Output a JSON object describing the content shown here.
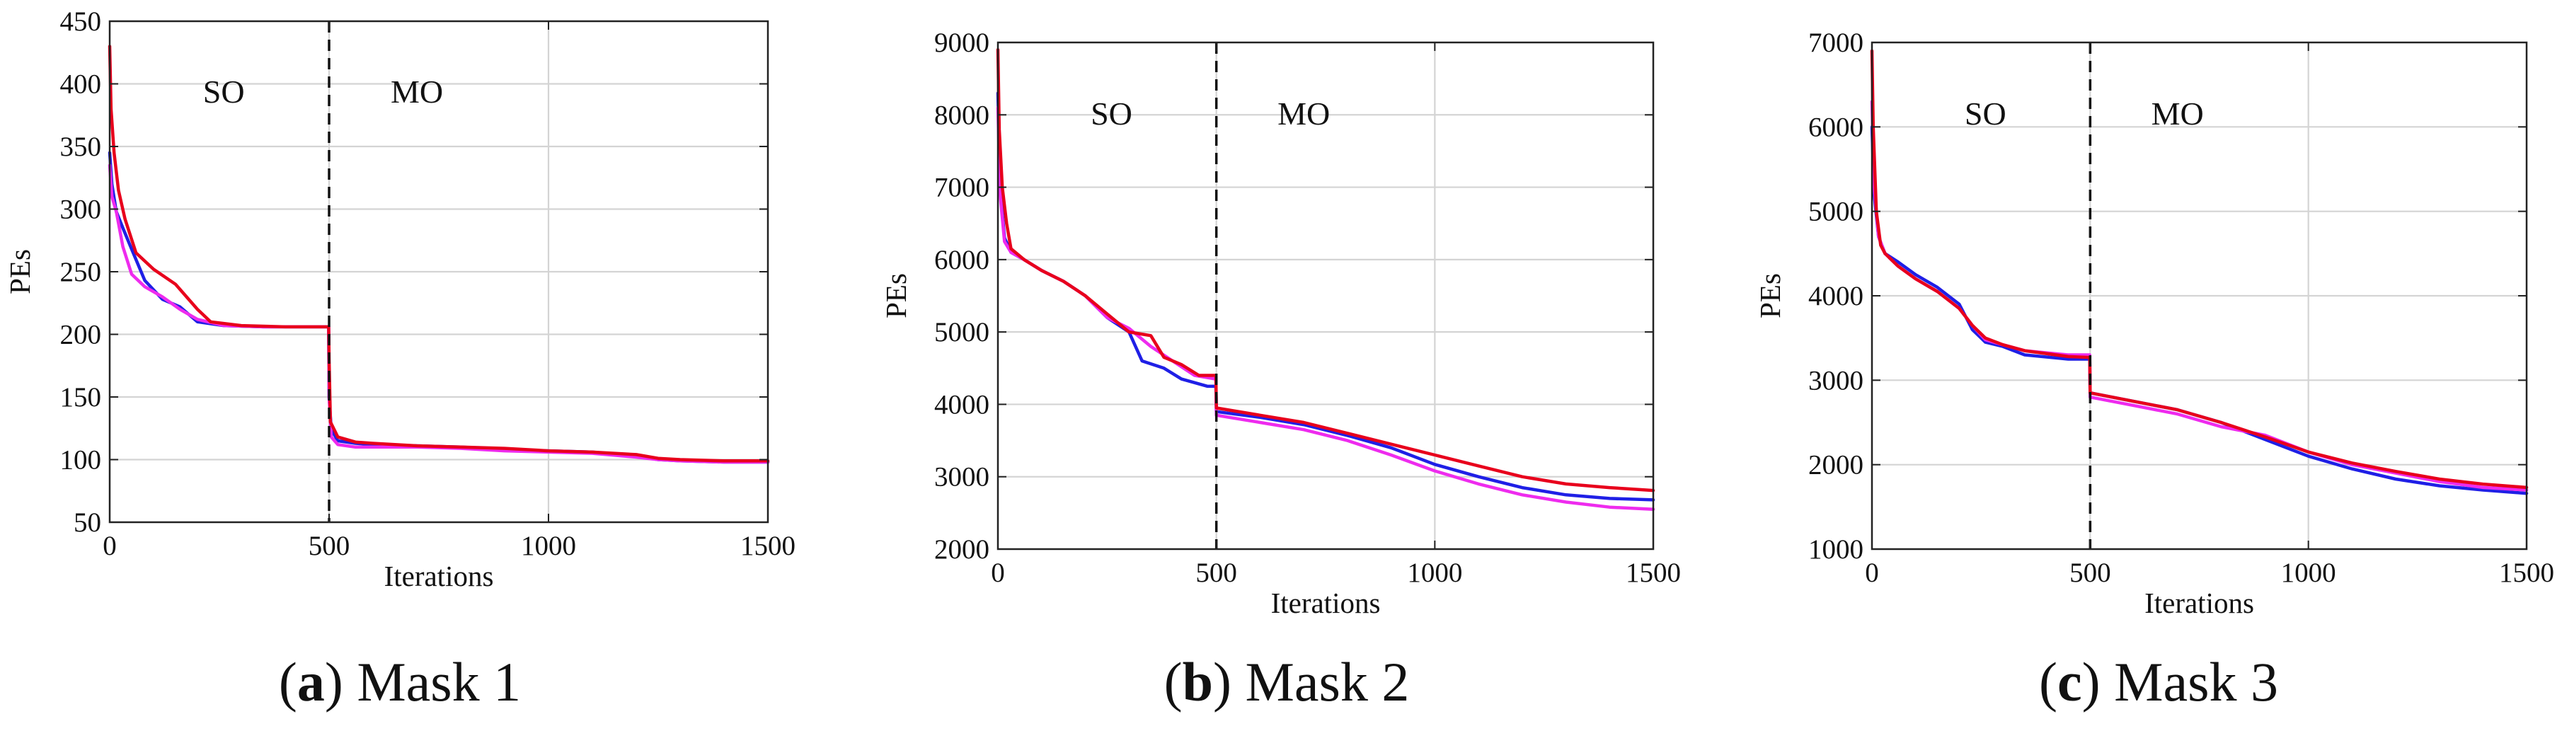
{
  "colors": {
    "red": "#e8001c",
    "blue": "#1f1fe6",
    "magenta": "#ee2bee",
    "divider": "#111111",
    "grid": "#d4d4d4"
  },
  "chart_data": [
    {
      "type": "line",
      "caption": {
        "letter": "a",
        "text": "Mask 1"
      },
      "xlabel": "Iterations",
      "ylabel": "PEs",
      "xlim": [
        0,
        1500
      ],
      "ylim": [
        50,
        450
      ],
      "xticks": [
        "0",
        "500",
        "1000",
        "1500"
      ],
      "yticks": [
        "50",
        "100",
        "150",
        "200",
        "250",
        "300",
        "350",
        "400",
        "450"
      ],
      "grid": true,
      "divider_x": 500,
      "regions": [
        "SO",
        "MO"
      ],
      "series": [
        {
          "color": "blue",
          "points": [
            [
              0,
              345
            ],
            [
              5,
              320
            ],
            [
              15,
              298
            ],
            [
              30,
              285
            ],
            [
              50,
              268
            ],
            [
              80,
              243
            ],
            [
              120,
              228
            ],
            [
              160,
              222
            ],
            [
              200,
              210
            ],
            [
              260,
              207
            ],
            [
              350,
              206
            ],
            [
              499,
              206
            ],
            [
              500,
              150
            ],
            [
              505,
              124
            ],
            [
              520,
              115
            ],
            [
              560,
              113
            ],
            [
              600,
              112
            ],
            [
              700,
              111
            ],
            [
              800,
              110
            ],
            [
              900,
              108
            ],
            [
              1000,
              107
            ],
            [
              1100,
              106
            ],
            [
              1200,
              103
            ],
            [
              1250,
              100
            ],
            [
              1300,
              99
            ],
            [
              1400,
              98
            ],
            [
              1500,
              98
            ]
          ]
        },
        {
          "color": "magenta",
          "points": [
            [
              0,
              335
            ],
            [
              5,
              310
            ],
            [
              15,
              298
            ],
            [
              30,
              270
            ],
            [
              50,
              248
            ],
            [
              80,
              238
            ],
            [
              120,
              230
            ],
            [
              160,
              220
            ],
            [
              200,
              212
            ],
            [
              260,
              207
            ],
            [
              350,
              206
            ],
            [
              499,
              206
            ],
            [
              500,
              150
            ],
            [
              505,
              118
            ],
            [
              520,
              112
            ],
            [
              560,
              110
            ],
            [
              600,
              110
            ],
            [
              700,
              110
            ],
            [
              800,
              109
            ],
            [
              900,
              107
            ],
            [
              1000,
              106
            ],
            [
              1100,
              105
            ],
            [
              1200,
              102
            ],
            [
              1250,
              100
            ],
            [
              1300,
              99
            ],
            [
              1400,
              98
            ],
            [
              1500,
              98
            ]
          ]
        },
        {
          "color": "red",
          "points": [
            [
              0,
              430
            ],
            [
              3,
              380
            ],
            [
              10,
              345
            ],
            [
              20,
              315
            ],
            [
              35,
              292
            ],
            [
              60,
              265
            ],
            [
              100,
              252
            ],
            [
              150,
              240
            ],
            [
              200,
              220
            ],
            [
              230,
              210
            ],
            [
              300,
              207
            ],
            [
              400,
              206
            ],
            [
              499,
              206
            ],
            [
              500,
              180
            ],
            [
              503,
              130
            ],
            [
              520,
              118
            ],
            [
              560,
              114
            ],
            [
              600,
              113
            ],
            [
              700,
              111
            ],
            [
              800,
              110
            ],
            [
              900,
              109
            ],
            [
              1000,
              107
            ],
            [
              1100,
              106
            ],
            [
              1200,
              104
            ],
            [
              1250,
              101
            ],
            [
              1300,
              100
            ],
            [
              1400,
              99
            ],
            [
              1500,
              99
            ]
          ]
        }
      ]
    },
    {
      "type": "line",
      "caption": {
        "letter": "b",
        "text": "Mask 2"
      },
      "xlabel": "Iterations",
      "ylabel": "PEs",
      "xlim": [
        0,
        1500
      ],
      "ylim": [
        2000,
        9000
      ],
      "xticks": [
        "0",
        "500",
        "1000",
        "1500"
      ],
      "yticks": [
        "2000",
        "3000",
        "4000",
        "5000",
        "6000",
        "7000",
        "8000",
        "9000"
      ],
      "grid": true,
      "divider_x": 500,
      "regions": [
        "SO",
        "MO"
      ],
      "series": [
        {
          "color": "blue",
          "points": [
            [
              0,
              8300
            ],
            [
              5,
              7000
            ],
            [
              15,
              6300
            ],
            [
              30,
              6100
            ],
            [
              60,
              6000
            ],
            [
              100,
              5850
            ],
            [
              150,
              5700
            ],
            [
              200,
              5500
            ],
            [
              250,
              5200
            ],
            [
              300,
              5000
            ],
            [
              330,
              4600
            ],
            [
              380,
              4500
            ],
            [
              420,
              4350
            ],
            [
              480,
              4250
            ],
            [
              499,
              4250
            ],
            [
              500,
              3900
            ],
            [
              600,
              3820
            ],
            [
              700,
              3720
            ],
            [
              800,
              3570
            ],
            [
              900,
              3400
            ],
            [
              1000,
              3170
            ],
            [
              1100,
              3000
            ],
            [
              1200,
              2850
            ],
            [
              1300,
              2750
            ],
            [
              1400,
              2700
            ],
            [
              1500,
              2680
            ]
          ]
        },
        {
          "color": "magenta",
          "points": [
            [
              0,
              8100
            ],
            [
              5,
              6900
            ],
            [
              15,
              6250
            ],
            [
              30,
              6100
            ],
            [
              60,
              6000
            ],
            [
              100,
              5850
            ],
            [
              150,
              5700
            ],
            [
              200,
              5500
            ],
            [
              250,
              5200
            ],
            [
              300,
              5050
            ],
            [
              350,
              4800
            ],
            [
              400,
              4600
            ],
            [
              450,
              4400
            ],
            [
              499,
              4350
            ],
            [
              500,
              3850
            ],
            [
              600,
              3750
            ],
            [
              700,
              3650
            ],
            [
              800,
              3500
            ],
            [
              900,
              3300
            ],
            [
              1000,
              3080
            ],
            [
              1100,
              2900
            ],
            [
              1200,
              2750
            ],
            [
              1300,
              2650
            ],
            [
              1400,
              2580
            ],
            [
              1500,
              2550
            ]
          ]
        },
        {
          "color": "red",
          "points": [
            [
              0,
              8900
            ],
            [
              3,
              7800
            ],
            [
              10,
              7000
            ],
            [
              20,
              6500
            ],
            [
              30,
              6150
            ],
            [
              60,
              6000
            ],
            [
              100,
              5850
            ],
            [
              150,
              5700
            ],
            [
              200,
              5500
            ],
            [
              250,
              5250
            ],
            [
              300,
              5000
            ],
            [
              350,
              4950
            ],
            [
              380,
              4650
            ],
            [
              420,
              4550
            ],
            [
              460,
              4400
            ],
            [
              499,
              4400
            ],
            [
              500,
              3950
            ],
            [
              600,
              3850
            ],
            [
              700,
              3750
            ],
            [
              800,
              3600
            ],
            [
              900,
              3450
            ],
            [
              1000,
              3300
            ],
            [
              1100,
              3150
            ],
            [
              1200,
              3000
            ],
            [
              1300,
              2900
            ],
            [
              1400,
              2850
            ],
            [
              1500,
              2810
            ]
          ]
        }
      ]
    },
    {
      "type": "line",
      "caption": {
        "letter": "c",
        "text": "Mask 3"
      },
      "xlabel": "Iterations",
      "ylabel": "PEs",
      "xlim": [
        0,
        1500
      ],
      "ylim": [
        1000,
        7000
      ],
      "xticks": [
        "0",
        "500",
        "1000",
        "1500"
      ],
      "yticks": [
        "1000",
        "2000",
        "3000",
        "4000",
        "5000",
        "6000",
        "7000"
      ],
      "grid": true,
      "divider_x": 500,
      "regions": [
        "SO",
        "MO"
      ],
      "series": [
        {
          "color": "blue",
          "points": [
            [
              0,
              6000
            ],
            [
              5,
              5200
            ],
            [
              15,
              4700
            ],
            [
              30,
              4500
            ],
            [
              60,
              4400
            ],
            [
              100,
              4250
            ],
            [
              150,
              4100
            ],
            [
              200,
              3900
            ],
            [
              230,
              3600
            ],
            [
              260,
              3450
            ],
            [
              300,
              3400
            ],
            [
              350,
              3300
            ],
            [
              450,
              3250
            ],
            [
              499,
              3250
            ],
            [
              500,
              2850
            ],
            [
              600,
              2750
            ],
            [
              700,
              2650
            ],
            [
              800,
              2500
            ],
            [
              900,
              2300
            ],
            [
              1000,
              2100
            ],
            [
              1100,
              1950
            ],
            [
              1200,
              1830
            ],
            [
              1300,
              1750
            ],
            [
              1400,
              1700
            ],
            [
              1500,
              1660
            ]
          ]
        },
        {
          "color": "magenta",
          "points": [
            [
              0,
              6300
            ],
            [
              5,
              5300
            ],
            [
              15,
              4700
            ],
            [
              30,
              4500
            ],
            [
              60,
              4350
            ],
            [
              100,
              4200
            ],
            [
              150,
              4050
            ],
            [
              200,
              3850
            ],
            [
              230,
              3650
            ],
            [
              260,
              3480
            ],
            [
              300,
              3420
            ],
            [
              350,
              3350
            ],
            [
              450,
              3300
            ],
            [
              499,
              3300
            ],
            [
              500,
              2800
            ],
            [
              600,
              2700
            ],
            [
              700,
              2600
            ],
            [
              800,
              2450
            ],
            [
              900,
              2350
            ],
            [
              1000,
              2150
            ],
            [
              1100,
              2000
            ],
            [
              1200,
              1900
            ],
            [
              1300,
              1800
            ],
            [
              1400,
              1730
            ],
            [
              1500,
              1700
            ]
          ]
        },
        {
          "color": "red",
          "points": [
            [
              0,
              6900
            ],
            [
              3,
              6000
            ],
            [
              10,
              5000
            ],
            [
              20,
              4600
            ],
            [
              30,
              4500
            ],
            [
              60,
              4350
            ],
            [
              100,
              4200
            ],
            [
              150,
              4050
            ],
            [
              200,
              3850
            ],
            [
              230,
              3650
            ],
            [
              260,
              3500
            ],
            [
              300,
              3420
            ],
            [
              350,
              3350
            ],
            [
              450,
              3280
            ],
            [
              499,
              3270
            ],
            [
              500,
              2850
            ],
            [
              600,
              2750
            ],
            [
              700,
              2650
            ],
            [
              800,
              2500
            ],
            [
              900,
              2330
            ],
            [
              1000,
              2150
            ],
            [
              1100,
              2020
            ],
            [
              1200,
              1920
            ],
            [
              1300,
              1830
            ],
            [
              1400,
              1770
            ],
            [
              1500,
              1730
            ]
          ]
        }
      ]
    }
  ]
}
